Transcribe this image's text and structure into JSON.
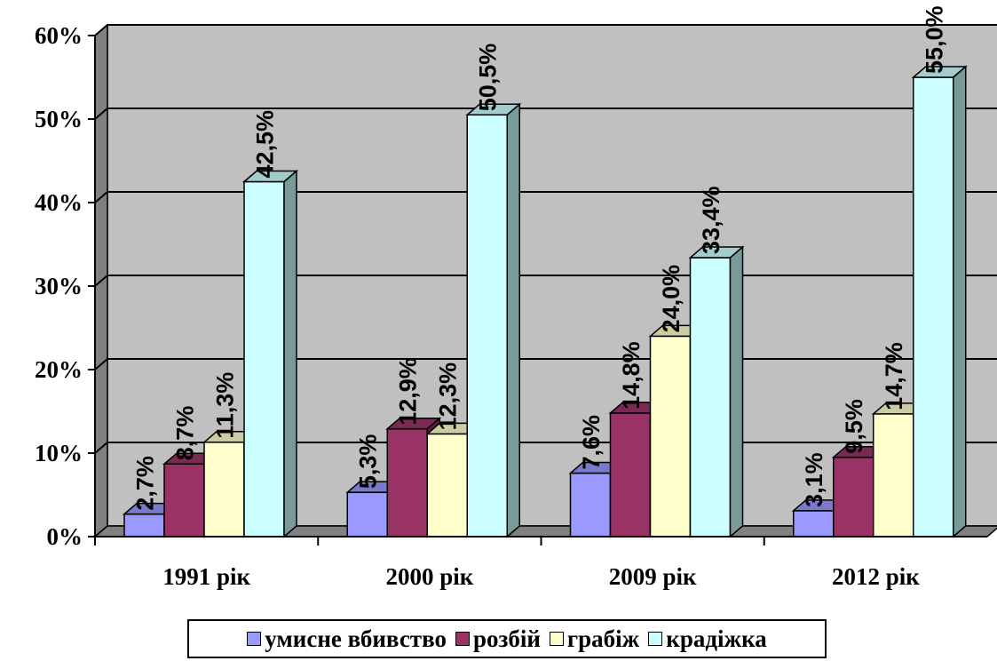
{
  "chart_data": {
    "type": "bar",
    "title": "",
    "xlabel": "",
    "ylabel": "",
    "ylim": [
      0,
      60
    ],
    "yticks": [
      "0%",
      "10%",
      "20%",
      "30%",
      "40%",
      "50%",
      "60%"
    ],
    "grid": true,
    "legend_position": "bottom",
    "categories": [
      "1991 рік",
      "2000 рік",
      "2009 рік",
      "2012 рік"
    ],
    "series": [
      {
        "name": "умисне вбивство",
        "color": "#9999ff",
        "values": [
          2.7,
          5.3,
          7.6,
          3.1
        ],
        "labels": [
          "2,7%",
          "5,3%",
          "7,6%",
          "3,1%"
        ]
      },
      {
        "name": "розбій",
        "color": "#993366",
        "values": [
          8.7,
          12.9,
          14.8,
          9.5
        ],
        "labels": [
          "8,7%",
          "12,9%",
          "14,8%",
          "9,5%"
        ]
      },
      {
        "name": "грабіж",
        "color": "#ffffcc",
        "values": [
          11.3,
          12.3,
          24.0,
          14.7
        ],
        "labels": [
          "11,3%",
          "12,3%",
          "24,0%",
          "14,7%"
        ]
      },
      {
        "name": "крадіжка",
        "color": "#ccffff",
        "values": [
          42.5,
          50.5,
          33.4,
          55.0
        ],
        "labels": [
          "42,5%",
          "50,5%",
          "33,4%",
          "55,0%"
        ]
      }
    ]
  }
}
